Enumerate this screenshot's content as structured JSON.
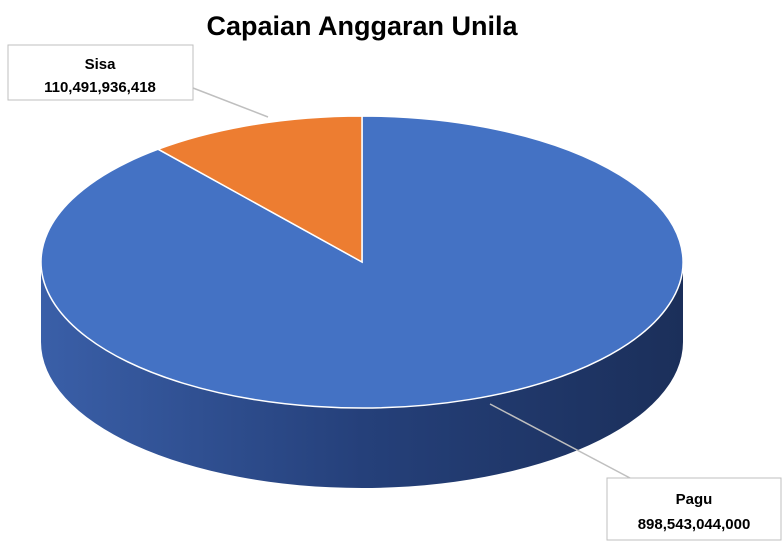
{
  "chart_data": {
    "type": "pie",
    "title": "Capaian Anggaran Unila",
    "categories": [
      "Pagu",
      "Sisa"
    ],
    "values": [
      898543044000,
      110491936418
    ],
    "value_labels": [
      "898,543,044,000",
      "110,491,936,418"
    ],
    "colors": [
      "#4472c4",
      "#ed7d31"
    ]
  }
}
